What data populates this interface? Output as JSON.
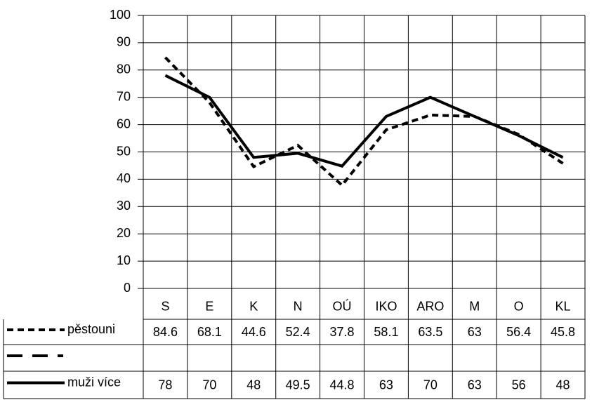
{
  "chart_data": {
    "type": "line",
    "categories": [
      "S",
      "E",
      "K",
      "N",
      "OÚ",
      "IKO",
      "ARO",
      "M",
      "O",
      "KL"
    ],
    "series": [
      {
        "name": "pěstouni",
        "color": "#000000",
        "style": "dashed",
        "values": [
          84.6,
          68.1,
          44.6,
          52.4,
          37.8,
          58.1,
          63.5,
          63,
          56.4,
          45.8
        ]
      },
      {
        "color": "#000000",
        "style": "long-dashed",
        "values": [
          null,
          null,
          null,
          null,
          null,
          null,
          null,
          null,
          null,
          null
        ]
      },
      {
        "name": "muži více",
        "color": "#000000",
        "style": "solid",
        "values": [
          78,
          70,
          48,
          49.5,
          44.8,
          63,
          70,
          63,
          56,
          48
        ]
      }
    ],
    "ylim": [
      0,
      100
    ],
    "yticks": [
      0,
      10,
      20,
      30,
      40,
      50,
      60,
      70,
      80,
      90,
      100
    ],
    "grid": true,
    "data_table": true
  }
}
